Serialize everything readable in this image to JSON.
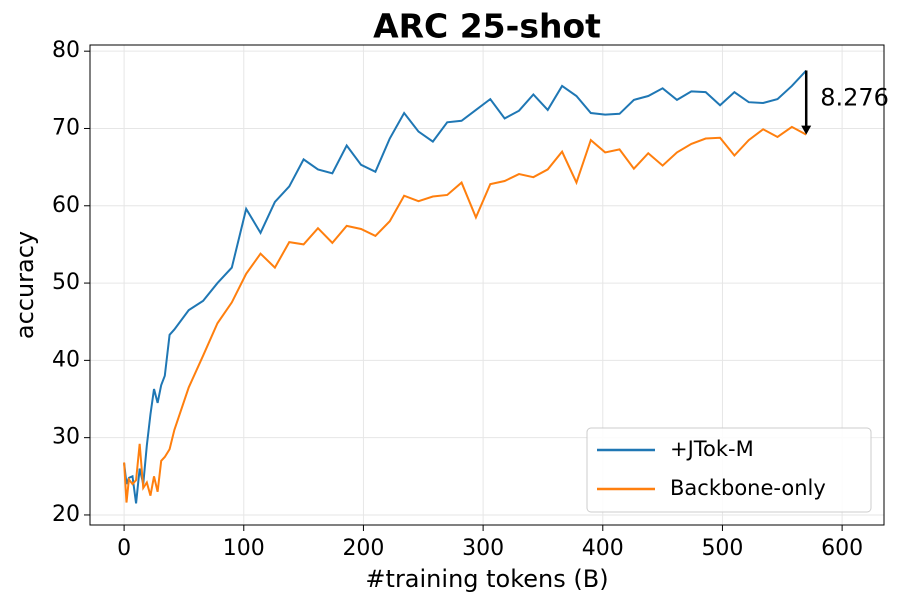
{
  "chart_data": {
    "type": "line",
    "title": "ARC 25-shot",
    "x_label": "#training tokens (B)",
    "y_label": "accuracy",
    "x": [
      0,
      2,
      4,
      7,
      10,
      13,
      16,
      19,
      22,
      25,
      28,
      31,
      34,
      38,
      42,
      54,
      66,
      78,
      90,
      102,
      114,
      126,
      138,
      150,
      162,
      174,
      186,
      198,
      210,
      222,
      234,
      246,
      258,
      270,
      282,
      294,
      306,
      318,
      330,
      342,
      354,
      366,
      378,
      390,
      402,
      414,
      426,
      438,
      450,
      462,
      474,
      486,
      498,
      510,
      522,
      534,
      546,
      558,
      570
    ],
    "series": [
      {
        "name": "+JTok-M",
        "color": "#1f77b4",
        "values": [
          26.7,
          24,
          24.8,
          25,
          21.5,
          26,
          24,
          29,
          33,
          36.3,
          34.5,
          36.8,
          38,
          43.3,
          44,
          46.5,
          47.7,
          50,
          52,
          59.6,
          56.5,
          60.5,
          62.5,
          66,
          64.7,
          64.2,
          67.8,
          65.3,
          64.4,
          68.7,
          72,
          69.6,
          68.3,
          70.8,
          71,
          72.4,
          73.8,
          71.3,
          72.3,
          74.4,
          72.4,
          75.5,
          74.2,
          72,
          71.8,
          71.9,
          73.7,
          74.2,
          75.2,
          73.7,
          74.8,
          74.7,
          73,
          74.7,
          73.4,
          73.3,
          73.8,
          75.5,
          77.5
        ]
      },
      {
        "name": "Backbone-only",
        "color": "#ff7f0e",
        "values": [
          26.8,
          21.6,
          24.6,
          24,
          24.5,
          29.2,
          23.5,
          24.2,
          22.5,
          25,
          23,
          27,
          27.5,
          28.5,
          31,
          36.5,
          40.6,
          44.8,
          47.5,
          51.2,
          53.8,
          52,
          55.3,
          55,
          57.1,
          55.2,
          57.4,
          57,
          56.1,
          58,
          61.3,
          60.6,
          61.2,
          61.4,
          63,
          58.5,
          62.8,
          63.2,
          64.1,
          63.7,
          64.7,
          67,
          63,
          68.5,
          66.9,
          67.3,
          64.8,
          66.8,
          65.2,
          66.9,
          68,
          68.7,
          68.8,
          66.5,
          68.5,
          69.9,
          68.9,
          70.2,
          69.2
        ]
      }
    ],
    "annotation": "8.276",
    "xlim": [
      -28.5,
      635
    ],
    "ylim": [
      18.7,
      80.8
    ],
    "xticks": [
      0,
      100,
      200,
      300,
      400,
      500,
      600
    ],
    "yticks": [
      20,
      30,
      40,
      50,
      60,
      70,
      80
    ],
    "grid": true,
    "legend": "lower right"
  }
}
